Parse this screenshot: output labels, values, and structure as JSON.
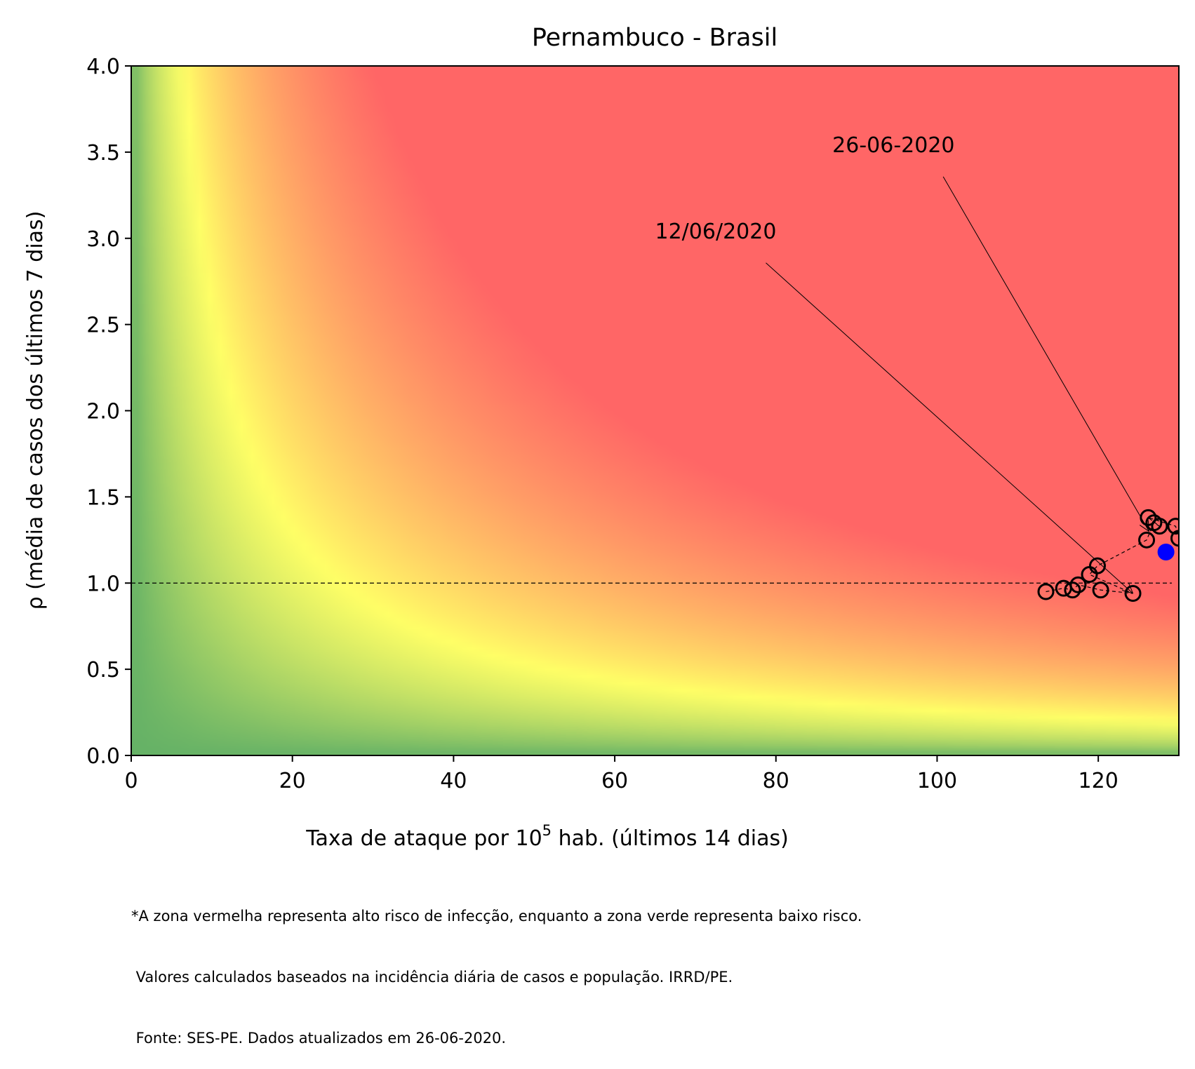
{
  "chart_data": {
    "type": "scatter",
    "title": "Pernambuco - Brasil",
    "xlabel": {
      "base": "Taxa de ataque por 10",
      "sup": "5",
      "rest": " hab. (últimos 14 dias)"
    },
    "ylabel": "ρ (média de casos dos últimos 7 dias)",
    "xlim": [
      0,
      130
    ],
    "ylim": [
      0,
      4
    ],
    "x_ticks": [
      0,
      20,
      40,
      60,
      80,
      100,
      120
    ],
    "y_ticks": [
      0.0,
      0.5,
      1.0,
      1.5,
      2.0,
      2.5,
      3.0,
      3.5,
      4.0
    ],
    "background": "risk heatmap: green (low) to yellow to red (high) as attack rate × ρ increases",
    "colors": {
      "red": "#ff6666",
      "yellow": "#ffff66",
      "green": "#66b266",
      "current_point": "#0000ff"
    },
    "reference_line": {
      "y": 1.0,
      "style": "dashed"
    },
    "series": [
      {
        "points": [
          {
            "x": 113.5,
            "y": 0.95
          },
          {
            "x": 115.7,
            "y": 0.97
          },
          {
            "x": 116.8,
            "y": 0.96
          },
          {
            "x": 117.5,
            "y": 0.99
          },
          {
            "x": 120.3,
            "y": 0.96
          },
          {
            "x": 124.3,
            "y": 0.94
          },
          {
            "x": 118.9,
            "y": 1.05
          },
          {
            "x": 119.9,
            "y": 1.1
          },
          {
            "x": 126.0,
            "y": 1.25
          },
          {
            "x": 126.9,
            "y": 1.35
          },
          {
            "x": 127.6,
            "y": 1.33
          },
          {
            "x": 126.2,
            "y": 1.38
          },
          {
            "x": 129.6,
            "y": 1.33
          },
          {
            "x": 130.0,
            "y": 1.26
          }
        ]
      }
    ],
    "current_point": {
      "x": 128.4,
      "y": 1.18
    },
    "annotations": [
      {
        "text": "12/06/2020",
        "text_x": 65,
        "text_y": 3.0,
        "point_x": 124.3,
        "point_y": 0.94
      },
      {
        "text": "26-06-2020",
        "text_x": 87,
        "text_y": 3.5,
        "point_x": 126.3,
        "point_y": 1.3
      }
    ]
  },
  "caption": {
    "lines": [
      "*A zona vermelha representa alto risco de infecção, enquanto a zona verde representa baixo risco.",
      " Valores calculados baseados na incidência diária de casos e população. IRRD/PE.",
      " Fonte: SES-PE. Dados atualizados em 26-06-2020."
    ]
  }
}
